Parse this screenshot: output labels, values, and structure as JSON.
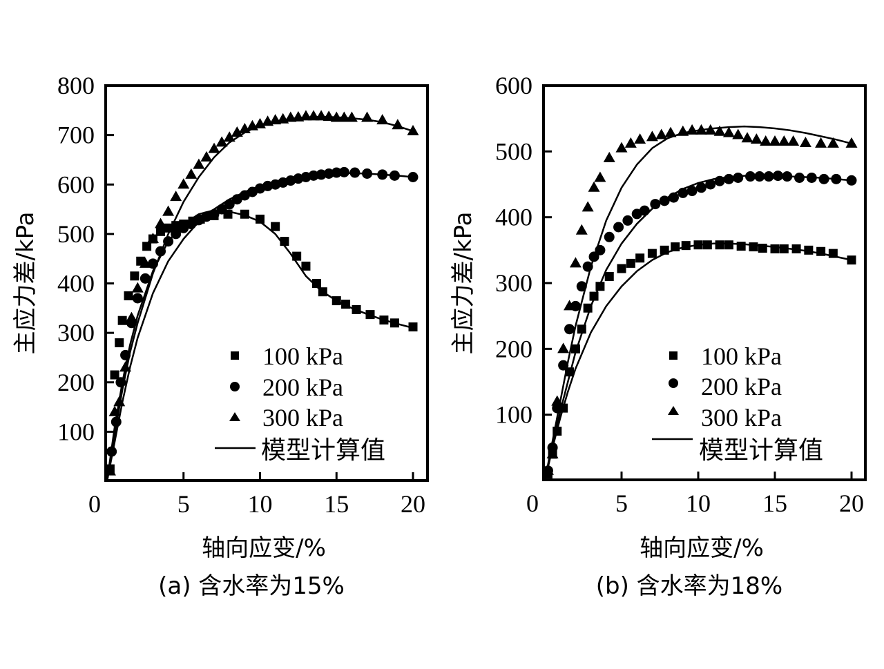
{
  "chart_data": [
    {
      "type": "scatter",
      "panel": "a",
      "caption": "(a) 含水率为15%",
      "xlabel": "轴向应变/%",
      "ylabel": "主应力差/kPa",
      "xlim": [
        0,
        21
      ],
      "ylim": [
        0,
        800
      ],
      "xticks": [
        "0",
        "5",
        "10",
        "15",
        "20"
      ],
      "xtick_values": [
        0,
        5,
        10,
        15,
        20
      ],
      "yticks": [
        "100",
        "200",
        "300",
        "400",
        "500",
        "600",
        "700",
        "800"
      ],
      "ytick_values": [
        100,
        200,
        300,
        400,
        500,
        600,
        700,
        800
      ],
      "grid": false,
      "legend_position": "bottom-right",
      "legend": {
        "series": [
          "100 kPa",
          "200 kPa",
          "300 kPa"
        ],
        "model": "模型计算值"
      },
      "series": [
        {
          "name": "100 kPa",
          "marker": "square",
          "x": [
            0.2,
            0.5,
            0.8,
            1.0,
            1.4,
            1.8,
            2.2,
            2.6,
            3.0,
            3.5,
            4.0,
            4.5,
            5.0,
            5.6,
            6.1,
            7.0,
            7.9,
            9.0,
            10.0,
            11.0,
            11.6,
            12.4,
            13.0,
            13.7,
            14.1,
            15.0,
            15.6,
            16.3,
            17.2,
            18.1,
            18.8,
            20.0
          ],
          "y": [
            25,
            215,
            280,
            325,
            375,
            415,
            445,
            475,
            490,
            505,
            512,
            517,
            520,
            526,
            530,
            537,
            540,
            540,
            530,
            515,
            485,
            455,
            435,
            400,
            383,
            365,
            358,
            347,
            337,
            326,
            320,
            312
          ]
        },
        {
          "name": "200 kPa",
          "marker": "circle",
          "x": [
            0.3,
            0.6,
            0.9,
            1.2,
            1.6,
            2.0,
            2.5,
            3.0,
            3.5,
            4.0,
            4.5,
            5.0,
            5.5,
            6.0,
            6.5,
            7.0,
            7.5,
            8.0,
            8.5,
            9.0,
            9.5,
            10.0,
            10.5,
            11.0,
            11.5,
            12.0,
            12.5,
            13.0,
            13.5,
            14.0,
            14.5,
            15.0,
            15.5,
            16.2,
            17.0,
            18.0,
            18.8,
            20.0
          ],
          "y": [
            60,
            120,
            200,
            255,
            320,
            370,
            410,
            440,
            465,
            485,
            500,
            512,
            520,
            528,
            535,
            540,
            550,
            560,
            570,
            578,
            585,
            592,
            597,
            600,
            604,
            608,
            612,
            615,
            618,
            620,
            622,
            624,
            625,
            624,
            622,
            620,
            618,
            615
          ]
        },
        {
          "name": "300 kPa",
          "marker": "triangle",
          "x": [
            0.2,
            0.5,
            0.8,
            1.2,
            1.6,
            2.0,
            2.5,
            3.0,
            3.5,
            4.0,
            4.5,
            5.0,
            5.5,
            6.0,
            6.5,
            7.0,
            7.5,
            8.0,
            8.5,
            9.0,
            9.5,
            10.0,
            10.5,
            11.0,
            11.5,
            12.0,
            12.5,
            13.0,
            13.5,
            14.0,
            14.5,
            15.0,
            15.5,
            16.0,
            17.0,
            18.0,
            19.0,
            20.0
          ],
          "y": [
            20,
            140,
            160,
            230,
            330,
            390,
            440,
            490,
            520,
            545,
            575,
            600,
            620,
            640,
            655,
            672,
            685,
            695,
            705,
            712,
            718,
            722,
            727,
            730,
            732,
            735,
            736,
            738,
            738,
            738,
            737,
            735,
            735,
            735,
            735,
            730,
            720,
            708
          ]
        }
      ],
      "model_curves": [
        {
          "name": "100 kPa 模型计算值",
          "x": [
            0,
            0.5,
            1,
            1.5,
            2,
            3,
            4,
            5,
            6,
            7,
            8,
            9,
            10,
            11,
            12,
            13,
            14,
            15,
            16,
            17,
            18,
            19,
            20
          ],
          "y": [
            0,
            110,
            200,
            275,
            335,
            425,
            485,
            520,
            540,
            548,
            545,
            538,
            525,
            500,
            460,
            415,
            385,
            365,
            350,
            338,
            327,
            318,
            310
          ]
        },
        {
          "name": "200 kPa 模型计算值",
          "x": [
            0,
            0.5,
            1,
            1.5,
            2,
            3,
            4,
            5,
            6,
            7,
            8,
            9,
            10,
            11,
            12,
            13,
            14,
            15,
            16,
            17,
            18,
            19,
            20
          ],
          "y": [
            0,
            80,
            160,
            230,
            290,
            380,
            445,
            490,
            525,
            550,
            570,
            585,
            597,
            606,
            613,
            618,
            621,
            623,
            623,
            622,
            620,
            618,
            615
          ]
        },
        {
          "name": "300 kPa 模型计算值",
          "x": [
            0,
            0.5,
            1,
            1.5,
            2,
            3,
            4,
            5,
            6,
            7,
            8,
            9,
            10,
            11,
            12,
            13,
            14,
            15,
            16,
            17,
            18,
            19,
            20
          ],
          "y": [
            0,
            95,
            185,
            260,
            320,
            420,
            500,
            565,
            615,
            655,
            685,
            705,
            720,
            728,
            733,
            736,
            737,
            736,
            734,
            731,
            726,
            718,
            708
          ]
        }
      ]
    },
    {
      "type": "scatter",
      "panel": "b",
      "caption": "(b) 含水率为18%",
      "xlabel": "轴向应变/%",
      "ylabel": "主应力差/kPa",
      "xlim": [
        0,
        21
      ],
      "ylim": [
        0,
        600
      ],
      "xticks": [
        "0",
        "5",
        "10",
        "15",
        "20"
      ],
      "xtick_values": [
        0,
        5,
        10,
        15,
        20
      ],
      "yticks": [
        "100",
        "200",
        "300",
        "400",
        "500",
        "600"
      ],
      "ytick_values": [
        100,
        200,
        300,
        400,
        500,
        600
      ],
      "grid": false,
      "legend_position": "bottom-right",
      "legend": {
        "series": [
          "100 kPa",
          "200 kPa",
          "300 kPa"
        ],
        "model": "模型计算值"
      },
      "series": [
        {
          "name": "100 kPa",
          "marker": "square",
          "x": [
            0.2,
            0.5,
            0.8,
            1.2,
            1.6,
            2.0,
            2.4,
            2.8,
            3.2,
            3.6,
            4.2,
            5.0,
            5.6,
            6.2,
            7.0,
            7.8,
            8.5,
            9.2,
            10.0,
            10.6,
            11.4,
            12.0,
            12.8,
            13.6,
            14.2,
            15.0,
            15.6,
            16.4,
            17.2,
            18.0,
            18.8,
            20.0
          ],
          "y": [
            10,
            40,
            75,
            110,
            165,
            200,
            230,
            262,
            280,
            295,
            310,
            322,
            330,
            338,
            345,
            350,
            355,
            357,
            358,
            358,
            358,
            358,
            356,
            355,
            353,
            352,
            352,
            352,
            350,
            348,
            345,
            335
          ]
        },
        {
          "name": "200 kPa",
          "marker": "circle",
          "x": [
            0.2,
            0.5,
            0.8,
            1.2,
            1.6,
            2.0,
            2.4,
            2.8,
            3.2,
            3.6,
            4.2,
            4.8,
            5.4,
            6.0,
            6.5,
            7.2,
            7.8,
            8.4,
            9.0,
            9.6,
            10.2,
            10.8,
            11.4,
            12.0,
            12.6,
            13.4,
            14.0,
            14.6,
            15.2,
            15.8,
            16.6,
            17.4,
            18.2,
            19.0,
            20.0
          ],
          "y": [
            15,
            50,
            110,
            175,
            230,
            265,
            295,
            325,
            340,
            350,
            370,
            385,
            395,
            405,
            410,
            420,
            425,
            430,
            437,
            440,
            445,
            450,
            455,
            458,
            460,
            462,
            462,
            462,
            463,
            462,
            460,
            460,
            458,
            458,
            456
          ]
        },
        {
          "name": "300 kPa",
          "marker": "triangle",
          "x": [
            0.2,
            0.5,
            0.8,
            1.2,
            1.6,
            2.0,
            2.4,
            2.8,
            3.2,
            3.6,
            4.2,
            5.0,
            5.6,
            6.2,
            7.0,
            7.6,
            8.2,
            9.0,
            9.6,
            10.2,
            10.8,
            11.4,
            12.0,
            12.6,
            13.2,
            13.8,
            14.4,
            15.0,
            15.6,
            16.2,
            17.0,
            18.0,
            18.8,
            20.0
          ],
          "y": [
            15,
            40,
            120,
            200,
            265,
            330,
            380,
            415,
            445,
            460,
            490,
            505,
            512,
            518,
            522,
            525,
            528,
            530,
            532,
            532,
            532,
            530,
            528,
            525,
            520,
            518,
            515,
            515,
            515,
            515,
            513,
            512,
            512,
            512
          ]
        }
      ],
      "model_curves": [
        {
          "name": "100 kPa 模型计算值",
          "x": [
            0,
            0.5,
            1,
            1.5,
            2,
            3,
            4,
            5,
            6,
            7,
            8,
            9,
            10,
            11,
            12,
            13,
            14,
            15,
            16,
            17,
            18,
            19,
            20
          ],
          "y": [
            0,
            50,
            95,
            135,
            170,
            225,
            265,
            295,
            318,
            335,
            347,
            354,
            358,
            360,
            360,
            359,
            357,
            355,
            352,
            349,
            345,
            340,
            335
          ]
        },
        {
          "name": "200 kPa 模型计算值",
          "x": [
            0,
            0.5,
            1,
            1.5,
            2,
            3,
            4,
            5,
            6,
            7,
            8,
            9,
            10,
            11,
            12,
            13,
            14,
            15,
            16,
            17,
            18,
            19,
            20
          ],
          "y": [
            0,
            55,
            105,
            150,
            195,
            265,
            320,
            360,
            390,
            413,
            430,
            443,
            452,
            458,
            461,
            463,
            463,
            463,
            462,
            461,
            460,
            458,
            456
          ]
        },
        {
          "name": "300 kPa 模型计算值",
          "x": [
            0,
            0.5,
            1,
            1.5,
            2,
            3,
            4,
            5,
            6,
            7,
            8,
            9,
            10,
            11,
            12,
            13,
            14,
            15,
            16,
            17,
            18,
            19,
            20
          ],
          "y": [
            0,
            60,
            120,
            180,
            235,
            325,
            395,
            445,
            480,
            505,
            520,
            528,
            532,
            535,
            537,
            538,
            537,
            535,
            532,
            528,
            523,
            518,
            512
          ]
        }
      ]
    }
  ]
}
